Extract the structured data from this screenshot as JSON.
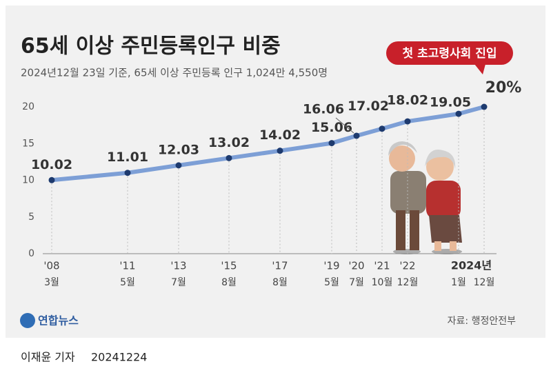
{
  "chart_data": {
    "type": "line",
    "title": "65세 이상 주민등록인구 비중",
    "subtitle": "2024년12월 23일 기준, 65세 이상 주민등록 인구 1,024만 4,550명",
    "callout": "첫 초고령사회 진입",
    "categories": [
      "3월",
      "5월",
      "7월",
      "8월",
      "8월",
      "5월",
      "7월",
      "10월",
      "12월",
      "1월",
      "12월"
    ],
    "x_year_labels": [
      "'08",
      "'11",
      "'13",
      "'15",
      "'17",
      "'19",
      "'20",
      "'21",
      "'22",
      null,
      null
    ],
    "x_group_label": "2024년",
    "values": [
      10.02,
      11.01,
      12.03,
      13.02,
      14.02,
      15.06,
      16.06,
      17.02,
      18.02,
      19.05,
      20
    ],
    "value_labels": [
      "10.02",
      "11.01",
      "12.03",
      "13.02",
      "14.02",
      "15.06",
      "16.06",
      "17.02",
      "18.02",
      "19.05",
      "20%"
    ],
    "color": "#7d9fd6",
    "marker_color": "#1d3a6e",
    "ylim": [
      0,
      20
    ],
    "yticks": [
      0,
      5,
      10,
      15,
      20
    ],
    "source": "자료: 행정안전부",
    "logo": "연합뉴스",
    "byline": "이재윤 기자",
    "date": "20241224"
  }
}
